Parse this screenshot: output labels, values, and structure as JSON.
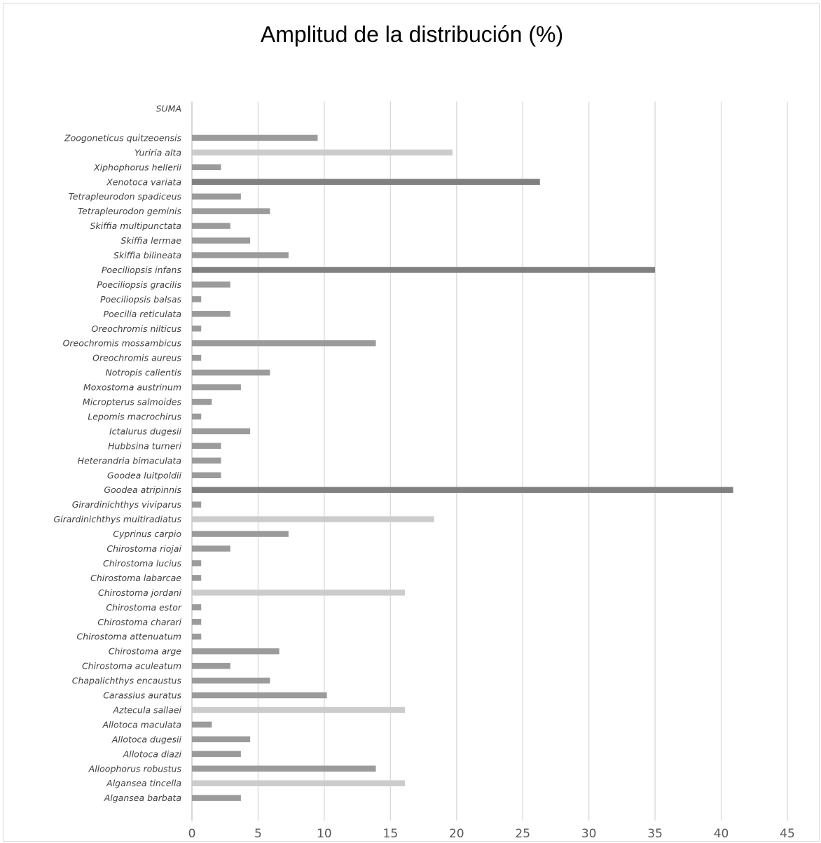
{
  "chart_data": {
    "type": "bar",
    "orientation": "horizontal",
    "title": "Amplitud de la distribución (%)",
    "xlim": [
      0,
      45
    ],
    "xticks": [
      "0",
      "5",
      "10",
      "15",
      "20",
      "25",
      "30",
      "35",
      "40",
      "45"
    ],
    "grid": true,
    "legend": "none",
    "colors": {
      "normal": "#9b9b9b",
      "dark": "#808080",
      "light": "#cccccc"
    },
    "categories": [
      "SUMA",
      "",
      "Zoogoneticus quitzeoensis",
      "Yuriria alta",
      "Xiphophorus hellerii",
      "Xenotoca variata",
      "Tetrapleurodon spadiceus",
      "Tetrapleurodon geminis",
      "Skiffia multipunctata",
      "Skiffia lermae",
      "Skiffia bilineata",
      "Poeciliopsis infans",
      "Poeciliopsis gracilis",
      "Poeciliopsis balsas",
      "Poecilia reticulata",
      "Oreochromis nilticus",
      "Oreochromis mossambicus",
      "Oreochromis aureus",
      "Notropis calientis",
      "Moxostoma austrinum",
      "Micropterus salmoides",
      "Lepomis macrochirus",
      "Ictalurus dugesii",
      "Hubbsina turneri",
      "Heterandria bimaculata",
      "Goodea luitpoldii",
      "Goodea atripinnis",
      "Girardinichthys viviparus",
      "Girardinichthys multiradiatus",
      "Cyprinus carpio",
      "Chirostoma riojai",
      "Chirostoma lucius",
      "Chirostoma labarcae",
      "Chirostoma jordani",
      "Chirostoma estor",
      "Chirostoma charari",
      "Chirostoma attenuatum",
      "Chirostoma arge",
      "Chirostoma aculeatum",
      "Chapalichthys encaustus",
      "Carassius auratus",
      "Aztecula sallaei",
      "Allotoca maculata",
      "Allotoca dugesii",
      "Allotoca diazi",
      "Alloophorus robustus",
      "Algansea tincella",
      "Algansea barbata"
    ],
    "values": [
      null,
      null,
      9.5,
      19.7,
      2.2,
      26.3,
      3.7,
      5.9,
      2.9,
      4.4,
      7.3,
      35.0,
      2.9,
      0.7,
      2.9,
      0.7,
      13.9,
      0.7,
      5.9,
      3.7,
      1.5,
      0.7,
      4.4,
      2.2,
      2.2,
      2.2,
      40.9,
      0.7,
      18.3,
      7.3,
      2.9,
      0.7,
      0.7,
      16.1,
      0.7,
      0.7,
      0.7,
      6.6,
      2.9,
      5.9,
      10.2,
      16.1,
      1.5,
      4.4,
      3.7,
      13.9,
      16.1,
      3.7
    ],
    "bar_colors": [
      "normal",
      "normal",
      "normal",
      "light",
      "normal",
      "dark",
      "normal",
      "normal",
      "normal",
      "normal",
      "normal",
      "dark",
      "normal",
      "normal",
      "normal",
      "normal",
      "normal",
      "normal",
      "normal",
      "normal",
      "normal",
      "normal",
      "normal",
      "normal",
      "normal",
      "normal",
      "dark",
      "normal",
      "light",
      "normal",
      "normal",
      "normal",
      "normal",
      "light",
      "normal",
      "normal",
      "normal",
      "normal",
      "normal",
      "normal",
      "normal",
      "light",
      "normal",
      "normal",
      "normal",
      "normal",
      "light",
      "normal"
    ]
  }
}
